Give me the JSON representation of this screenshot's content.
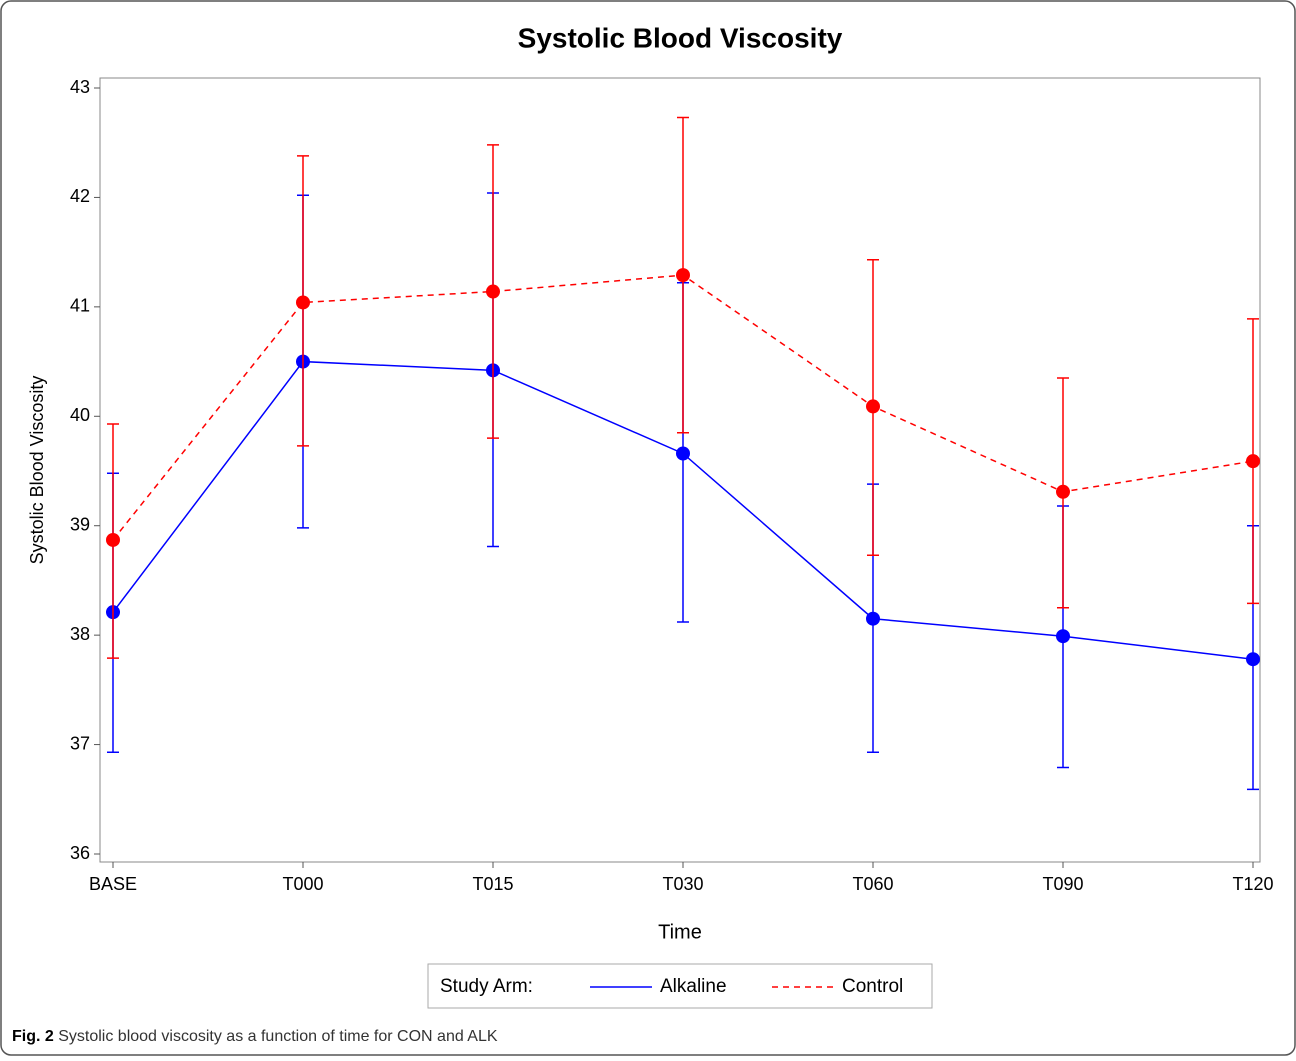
{
  "chart_data": {
    "type": "line-errorbar",
    "title": "Systolic Blood Viscosity",
    "xlabel": "Time",
    "ylabel": "Systolic Blood Viscosity",
    "categories": [
      "BASE",
      "T000",
      "T015",
      "T030",
      "T060",
      "T090",
      "T120"
    ],
    "ylim": [
      36,
      43
    ],
    "yticks": [
      36,
      37,
      38,
      39,
      40,
      41,
      42,
      43
    ],
    "grid": false,
    "legend_title": "Study Arm:",
    "legend": "bottom",
    "series": [
      {
        "name": "Alkaline",
        "color": "#0000ff",
        "line_style": "solid",
        "values": [
          38.21,
          40.5,
          40.42,
          39.66,
          38.15,
          37.99,
          37.78
        ],
        "lower": [
          36.93,
          38.98,
          38.81,
          38.12,
          36.93,
          36.79,
          36.59
        ],
        "upper": [
          39.48,
          42.02,
          42.04,
          41.22,
          39.38,
          39.18,
          39.0
        ]
      },
      {
        "name": "Control",
        "color": "#ff0000",
        "line_style": "dashed",
        "values": [
          38.87,
          41.04,
          41.14,
          41.29,
          40.09,
          39.31,
          39.59
        ],
        "lower": [
          37.79,
          39.73,
          39.8,
          39.85,
          38.73,
          38.25,
          38.29
        ],
        "upper": [
          39.93,
          42.38,
          42.48,
          42.73,
          41.43,
          40.35,
          40.89
        ]
      }
    ]
  },
  "caption": {
    "label": "Fig. 2",
    "text": "Systolic blood viscosity as a function of time for CON and ALK"
  }
}
